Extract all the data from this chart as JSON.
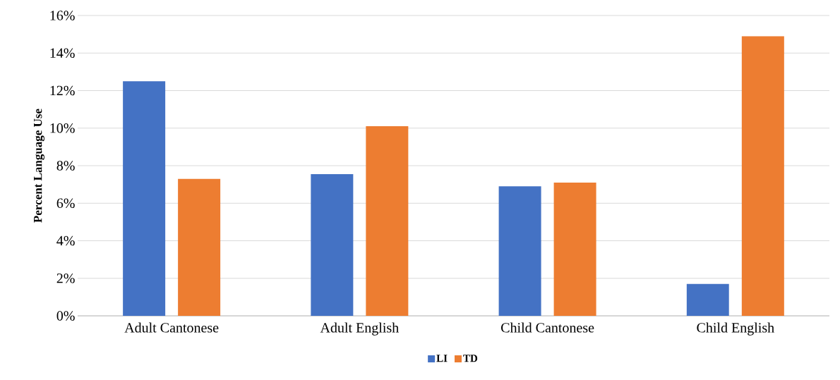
{
  "chart_data": {
    "type": "bar",
    "ylabel": "Percent Language Use",
    "categories": [
      "Adult Cantonese",
      "Adult English",
      "Child Cantonese",
      "Child English"
    ],
    "series": [
      {
        "name": "LI",
        "color": "#4472c4",
        "values": [
          12.5,
          7.55,
          6.9,
          1.7
        ]
      },
      {
        "name": "TD",
        "color": "#ed7d31",
        "values": [
          7.3,
          10.1,
          7.1,
          14.9
        ]
      }
    ],
    "ylim": [
      0,
      16
    ],
    "yticks": [
      {
        "value": 0,
        "label": "0%"
      },
      {
        "value": 2,
        "label": "2%"
      },
      {
        "value": 4,
        "label": "4%"
      },
      {
        "value": 6,
        "label": "6%"
      },
      {
        "value": 8,
        "label": "8%"
      },
      {
        "value": 10,
        "label": "10%"
      },
      {
        "value": 12,
        "label": "12%"
      },
      {
        "value": 14,
        "label": "14%"
      },
      {
        "value": 16,
        "label": "16%"
      }
    ],
    "grid": "y",
    "legend": "bottom"
  }
}
